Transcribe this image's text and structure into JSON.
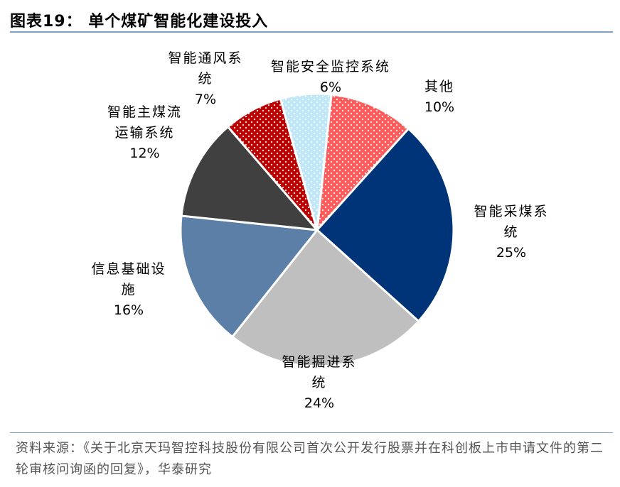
{
  "header": {
    "title": "图表19：  单个煤矿智能化建设投入"
  },
  "source": {
    "text": "资料来源：《关于北京天玛智控科技股份有限公司首次公开发行股票并在科创板上市申请文件的第二轮审核问询函的回复》，华泰研究"
  },
  "chart_data": {
    "type": "pie",
    "title": "单个煤矿智能化建设投入",
    "unit": "%",
    "slices": [
      {
        "label": "其他",
        "value": 10,
        "pct_label": "10%",
        "color": "#ff5b5b",
        "pattern": "dots"
      },
      {
        "label": "智能采煤系统",
        "value": 25,
        "pct_label": "25%",
        "color": "#003478",
        "pattern": "solid"
      },
      {
        "label": "智能掘进系统",
        "value": 24,
        "pct_label": "24%",
        "color": "#bfbfbf",
        "pattern": "solid"
      },
      {
        "label": "信息基础设施",
        "value": 16,
        "pct_label": "16%",
        "color": "#5b7fa6",
        "pattern": "solid"
      },
      {
        "label": "智能主煤流运输系统",
        "value": 12,
        "pct_label": "12%",
        "color": "#404040",
        "pattern": "solid"
      },
      {
        "label": "智能通风系统",
        "value": 7,
        "pct_label": "7%",
        "color": "#c00000",
        "pattern": "dots"
      },
      {
        "label": "智能安全监控系统",
        "value": 6,
        "pct_label": "6%",
        "color": "#bfe7f7",
        "pattern": "dots"
      }
    ]
  }
}
